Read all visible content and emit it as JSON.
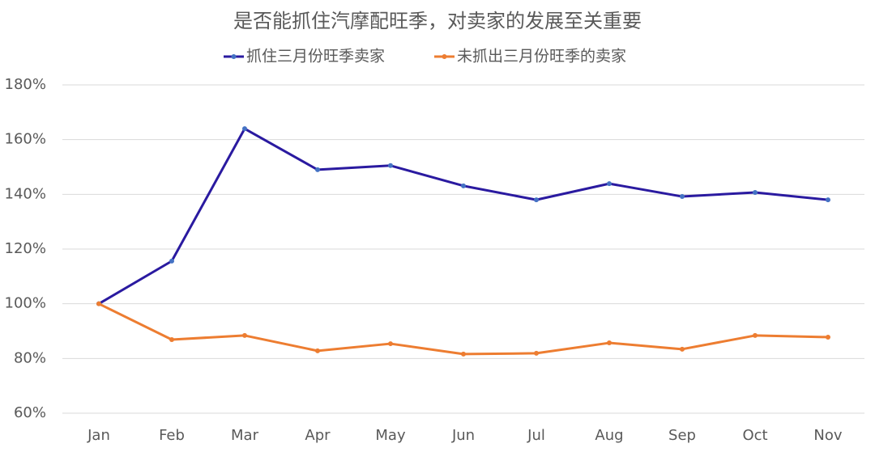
{
  "chart_data": {
    "type": "line",
    "title": "是否能抓住汽摩配旺季，对卖家的发展至关重要",
    "categories": [
      "Jan",
      "Feb",
      "Mar",
      "Apr",
      "May",
      "Jun",
      "Jul",
      "Aug",
      "Sep",
      "Oct",
      "Nov"
    ],
    "series": [
      {
        "name": "抓住三月份旺季卖家",
        "color": "#2a1aa0",
        "values": [
          100,
          115.6,
          164.0,
          149.0,
          150.5,
          143.1,
          138.0,
          143.9,
          139.2,
          140.7,
          138.0
        ]
      },
      {
        "name": "未抓出三月份旺季的卖家",
        "color": "#ed7d31",
        "values": [
          100,
          86.9,
          88.4,
          82.8,
          85.4,
          81.6,
          81.9,
          85.7,
          83.4,
          88.4,
          87.8
        ]
      }
    ],
    "ylim": [
      60,
      180
    ],
    "yticks": [
      {
        "value": 60,
        "label": "60%"
      },
      {
        "value": 80,
        "label": "80%"
      },
      {
        "value": 100,
        "label": "100%"
      },
      {
        "value": 120,
        "label": "120%"
      },
      {
        "value": 140,
        "label": "140%"
      },
      {
        "value": 160,
        "label": "160%"
      },
      {
        "value": 180,
        "label": "180%"
      }
    ],
    "grid": true,
    "legend": "top"
  }
}
